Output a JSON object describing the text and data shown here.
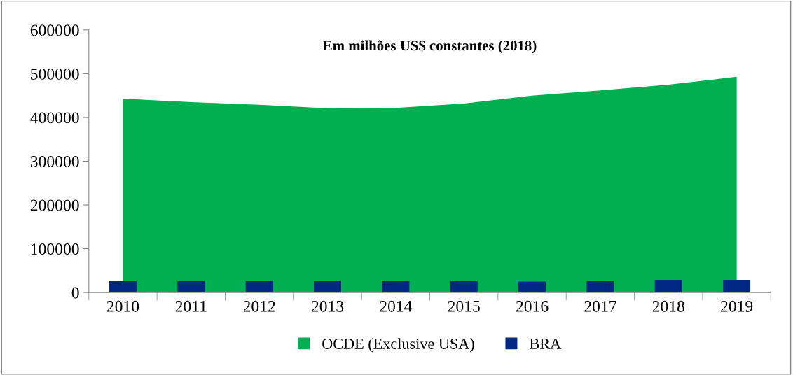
{
  "chart_data": {
    "type": "bar",
    "title": "Em milhões US$ constantes (2018)",
    "categories": [
      "2010",
      "2011",
      "2012",
      "2013",
      "2014",
      "2015",
      "2016",
      "2017",
      "2018",
      "2019"
    ],
    "series": [
      {
        "name": "OCDE (Exclusive USA)",
        "type": "area",
        "color": "#00b050",
        "values": [
          443000,
          435000,
          429000,
          421000,
          422000,
          432000,
          450000,
          462000,
          475000,
          493000
        ]
      },
      {
        "name": "BRA",
        "color": "#002882",
        "values": [
          27000,
          26000,
          27000,
          27000,
          27000,
          26000,
          25000,
          27000,
          29000,
          29000
        ]
      }
    ],
    "ylim": [
      0,
      600000
    ],
    "yticks": [
      0,
      100000,
      200000,
      300000,
      400000,
      500000,
      600000
    ],
    "grid": false,
    "legend": "bottom"
  }
}
